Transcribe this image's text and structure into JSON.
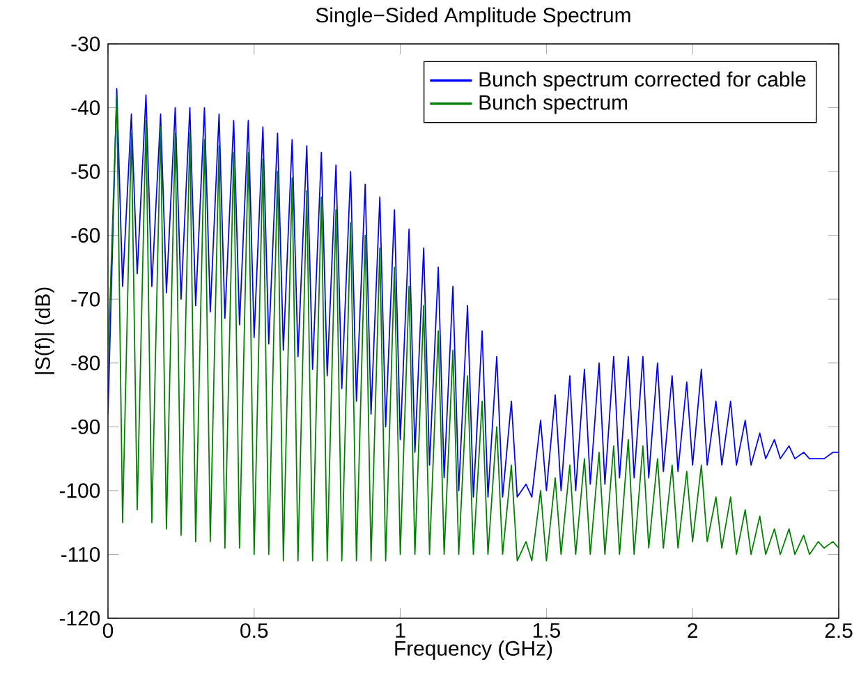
{
  "chart_data": {
    "type": "line",
    "title": "Single−Sided Amplitude Spectrum",
    "xlabel": "Frequency (GHz)",
    "ylabel": "|S(f)| (dB)",
    "x": [
      0,
      0.03,
      0.05,
      0.08,
      0.1,
      0.13,
      0.15,
      0.18,
      0.2,
      0.23,
      0.25,
      0.28,
      0.3,
      0.33,
      0.35,
      0.38,
      0.4,
      0.43,
      0.45,
      0.48,
      0.5,
      0.53,
      0.55,
      0.58,
      0.6,
      0.63,
      0.65,
      0.68,
      0.7,
      0.73,
      0.75,
      0.78,
      0.8,
      0.83,
      0.85,
      0.88,
      0.9,
      0.93,
      0.95,
      0.98,
      1.0,
      1.03,
      1.05,
      1.08,
      1.1,
      1.13,
      1.15,
      1.18,
      1.2,
      1.23,
      1.25,
      1.28,
      1.3,
      1.33,
      1.35,
      1.38,
      1.4,
      1.43,
      1.45,
      1.48,
      1.5,
      1.53,
      1.55,
      1.58,
      1.6,
      1.63,
      1.65,
      1.68,
      1.7,
      1.73,
      1.75,
      1.78,
      1.8,
      1.83,
      1.85,
      1.88,
      1.9,
      1.93,
      1.95,
      1.98,
      2.0,
      2.03,
      2.05,
      2.08,
      2.1,
      2.13,
      2.15,
      2.18,
      2.2,
      2.23,
      2.25,
      2.28,
      2.3,
      2.33,
      2.35,
      2.38,
      2.4,
      2.43,
      2.45,
      2.48,
      2.5
    ],
    "series": [
      {
        "name": "Bunch spectrum corrected for cable",
        "color": "#0000ff",
        "values": [
          -88,
          -37,
          -68,
          -41,
          -66,
          -38,
          -68,
          -41,
          -69,
          -40,
          -70,
          -40,
          -71,
          -40,
          -72,
          -41,
          -73,
          -42,
          -74,
          -42,
          -76,
          -43,
          -77,
          -44,
          -78,
          -45,
          -79,
          -46,
          -81,
          -47,
          -82,
          -49,
          -84,
          -50,
          -86,
          -52,
          -88,
          -54,
          -90,
          -56,
          -92,
          -59,
          -94,
          -62,
          -96,
          -65,
          -98,
          -68,
          -100,
          -71,
          -101,
          -75,
          -101,
          -79,
          -101,
          -86,
          -101,
          -99,
          -101,
          -89,
          -100,
          -85,
          -100,
          -82,
          -100,
          -81,
          -99,
          -80,
          -99,
          -79,
          -98,
          -79,
          -98,
          -79,
          -98,
          -80,
          -97,
          -82,
          -97,
          -83,
          -96,
          -81,
          -96,
          -86,
          -96,
          -86,
          -96,
          -89,
          -96,
          -91,
          -95,
          -92,
          -95,
          -93,
          -95,
          -94,
          -95,
          -95,
          -95,
          -94,
          -94
        ]
      },
      {
        "name": "Bunch spectrum",
        "color": "#008000",
        "values": [
          -80,
          -38,
          -105,
          -44,
          -103,
          -42,
          -105,
          -43,
          -106,
          -44,
          -107,
          -44,
          -108,
          -45,
          -108,
          -46,
          -109,
          -47,
          -109,
          -47,
          -110,
          -48,
          -110,
          -50,
          -111,
          -51,
          -111,
          -53,
          -111,
          -54,
          -111,
          -56,
          -111,
          -58,
          -111,
          -60,
          -111,
          -62,
          -111,
          -65,
          -110,
          -68,
          -110,
          -71,
          -110,
          -75,
          -110,
          -78,
          -110,
          -82,
          -110,
          -86,
          -110,
          -90,
          -110,
          -96,
          -111,
          -108,
          -111,
          -100,
          -111,
          -98,
          -110,
          -96,
          -110,
          -95,
          -110,
          -94,
          -110,
          -93,
          -110,
          -92,
          -110,
          -93,
          -109,
          -95,
          -109,
          -96,
          -109,
          -97,
          -108,
          -96,
          -108,
          -101,
          -109,
          -101,
          -110,
          -103,
          -110,
          -104,
          -110,
          -106,
          -110,
          -106,
          -110,
          -107,
          -110,
          -108,
          -109,
          -108,
          -109
        ]
      }
    ],
    "xlim": [
      0,
      2.5
    ],
    "xticks": [
      0,
      0.5,
      1,
      1.5,
      2,
      2.5
    ],
    "ylim": [
      -120,
      -30
    ],
    "yticks": [
      -120,
      -110,
      -100,
      -90,
      -80,
      -70,
      -60,
      -50,
      -40,
      -30
    ],
    "grid": false,
    "legend": "top right",
    "marker": "none",
    "line_style": "solid"
  }
}
